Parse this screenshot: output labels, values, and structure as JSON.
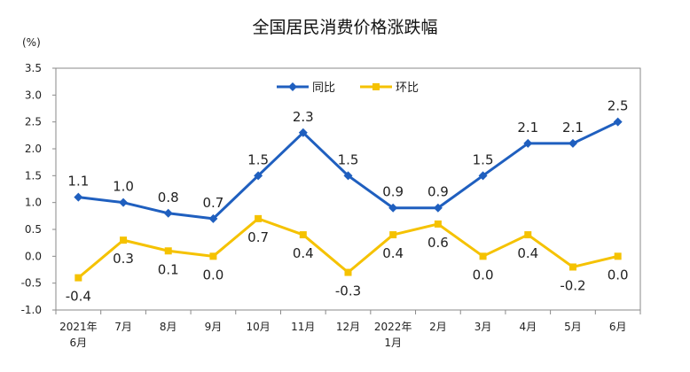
{
  "chart_data": {
    "type": "line",
    "title": "全国居民消费价格涨跌幅",
    "ylabel": "(%)",
    "xlabel": "",
    "categories": [
      [
        "2021年",
        "6月"
      ],
      [
        "7月"
      ],
      [
        "8月"
      ],
      [
        "9月"
      ],
      [
        "10月"
      ],
      [
        "11月"
      ],
      [
        "12月"
      ],
      [
        "2022年",
        "1月"
      ],
      [
        "2月"
      ],
      [
        "3月"
      ],
      [
        "4月"
      ],
      [
        "5月"
      ],
      [
        "6月"
      ]
    ],
    "ylim": [
      -1.0,
      3.5
    ],
    "yticks": [
      "3.5",
      "3.0",
      "2.5",
      "2.0",
      "1.5",
      "1.0",
      "0.5",
      "0.0",
      "-0.5",
      "-1.0"
    ],
    "ytick_values": [
      3.5,
      3.0,
      2.5,
      2.0,
      1.5,
      1.0,
      0.5,
      0.0,
      -0.5,
      -1.0
    ],
    "grid": false,
    "legend_position": "top-center",
    "series": [
      {
        "name": "同比",
        "color": "#1f5fbf",
        "marker": "diamond",
        "label_position": "above",
        "values": [
          1.1,
          1.0,
          0.8,
          0.7,
          1.5,
          2.3,
          1.5,
          0.9,
          0.9,
          1.5,
          2.1,
          2.1,
          2.5
        ],
        "labels": [
          "1.1",
          "1.0",
          "0.8",
          "0.7",
          "1.5",
          "2.3",
          "1.5",
          "0.9",
          "0.9",
          "1.5",
          "2.1",
          "2.1",
          "2.5"
        ]
      },
      {
        "name": "环比",
        "color": "#f5c200",
        "marker": "square",
        "label_position": "below",
        "values": [
          -0.4,
          0.3,
          0.1,
          0.0,
          0.7,
          0.4,
          -0.3,
          0.4,
          0.6,
          0.0,
          0.4,
          -0.2,
          0.0
        ],
        "labels": [
          "-0.4",
          "0.3",
          "0.1",
          "0.0",
          "0.7",
          "0.4",
          "-0.3",
          "0.4",
          "0.6",
          "0.0",
          "0.4",
          "-0.2",
          "0.0"
        ]
      }
    ]
  }
}
